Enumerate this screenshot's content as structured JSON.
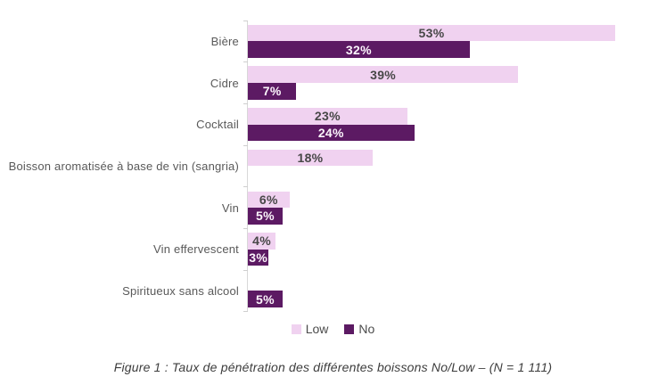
{
  "chart_data": {
    "type": "bar",
    "orientation": "horizontal",
    "categories": [
      "Bière",
      "Cidre",
      "Cocktail",
      "Boisson aromatisée à base de vin (sangria)",
      "Vin",
      "Vin effervescent",
      "Spiritueux sans alcool"
    ],
    "series": [
      {
        "name": "Low",
        "color": "#F0D2F0",
        "text_color": "#474747",
        "values": [
          53,
          39,
          23,
          18,
          6,
          4,
          null
        ]
      },
      {
        "name": "No",
        "color": "#5C1A63",
        "text_color": "#FBF4FB",
        "values": [
          32,
          7,
          24,
          null,
          5,
          3,
          5
        ]
      }
    ],
    "value_suffix": "%",
    "xlim": [
      0,
      53
    ],
    "grid": false,
    "legend_position": "bottom-center",
    "labels_inside_bars": true
  },
  "legend": {
    "items": [
      {
        "label": "Low",
        "color": "#F0D2F0"
      },
      {
        "label": "No",
        "color": "#5C1A63"
      }
    ]
  },
  "caption": "Figure 1 : Taux de pénétration des différentes boissons No/Low – (N = 1 111)",
  "colors": {
    "background": "#FFFFFF",
    "axis_line": "#D8D8D8",
    "tick": "#CFCFCF",
    "category_label": "#595959",
    "legend_label": "#4B4B4B",
    "caption_text": "#3D3D3D"
  }
}
